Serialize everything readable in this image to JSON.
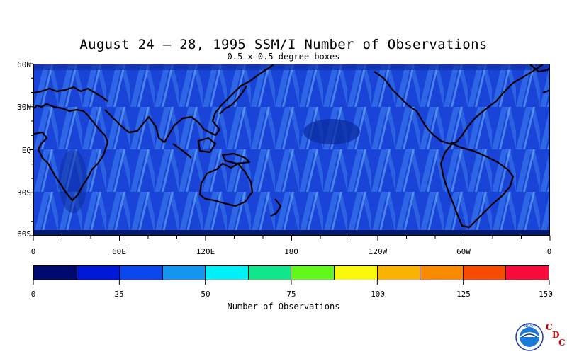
{
  "title": "August 24 – 28, 1995 SSM/I Number of Observations",
  "subtitle": "0.5 x 0.5 degree boxes",
  "lat_axis": [
    "60N",
    "30N",
    "EQ",
    "30S",
    "60S"
  ],
  "lon_axis": [
    "0",
    "60E",
    "120E",
    "180",
    "120W",
    "60W",
    "0"
  ],
  "colorbar": {
    "title": "Number of Observations",
    "ticks": [
      "0",
      "25",
      "50",
      "75",
      "100",
      "125",
      "150"
    ],
    "colors": [
      "#000a6e",
      "#0018d8",
      "#0a46ee",
      "#1496ee",
      "#00f0f8",
      "#10e68c",
      "#62f81c",
      "#f8f80a",
      "#f8b400",
      "#f88a00",
      "#f84c00",
      "#f80a3c"
    ]
  },
  "map": {
    "background_color": "#1a44d8",
    "coast_color": "#000000",
    "lon_range": [
      0,
      360
    ],
    "lat_range": [
      -60,
      60
    ]
  },
  "logo": {
    "org": "NOAA",
    "letters": [
      "C",
      "D",
      "C"
    ]
  }
}
